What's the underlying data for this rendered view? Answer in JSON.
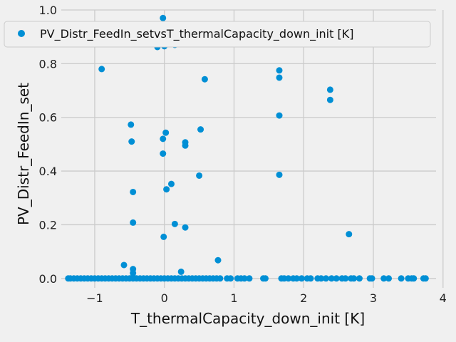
{
  "chart_data": {
    "type": "scatter",
    "title": "",
    "xlabel": "T_thermalCapacity_down_init [K]",
    "ylabel": "PV_Distr_FeedIn_set",
    "xlim": [
      -1.48,
      3.9
    ],
    "ylim": [
      -0.035,
      1.0
    ],
    "xticks": [
      -1,
      0,
      1,
      2,
      3,
      4
    ],
    "yticks": [
      0.0,
      0.2,
      0.4,
      0.6,
      0.8,
      1.0
    ],
    "xtick_labels": [
      "−1",
      "0",
      "1",
      "2",
      "3",
      "4"
    ],
    "ytick_labels": [
      "0.0",
      "0.2",
      "0.4",
      "0.6",
      "0.8",
      "1.0"
    ],
    "grid": true,
    "legend_position": "top-right",
    "colors": {
      "series": "#008fd5",
      "grid": "#cbcbcb",
      "background": "#f0f0f0"
    },
    "series": [
      {
        "name": "PV_Distr_FeedIn_setvsT_thermalCapacity_down_init [K]",
        "points": [
          [
            -0.02,
            0.97
          ],
          [
            0.0,
            0.865
          ],
          [
            -0.1,
            0.862
          ],
          [
            0.15,
            0.87
          ],
          [
            -0.9,
            0.78
          ],
          [
            0.58,
            0.742
          ],
          [
            1.65,
            0.775
          ],
          [
            1.65,
            0.748
          ],
          [
            2.38,
            0.703
          ],
          [
            2.38,
            0.665
          ],
          [
            1.65,
            0.607
          ],
          [
            -0.48,
            0.573
          ],
          [
            0.52,
            0.555
          ],
          [
            0.02,
            0.543
          ],
          [
            -0.02,
            0.52
          ],
          [
            -0.47,
            0.51
          ],
          [
            0.3,
            0.507
          ],
          [
            0.3,
            0.495
          ],
          [
            -0.02,
            0.465
          ],
          [
            0.5,
            0.383
          ],
          [
            1.65,
            0.386
          ],
          [
            0.1,
            0.352
          ],
          [
            0.03,
            0.332
          ],
          [
            -0.45,
            0.322
          ],
          [
            -0.45,
            0.208
          ],
          [
            0.15,
            0.203
          ],
          [
            0.3,
            0.19
          ],
          [
            -0.01,
            0.155
          ],
          [
            2.65,
            0.165
          ],
          [
            0.77,
            0.068
          ],
          [
            -0.58,
            0.05
          ],
          [
            -0.45,
            0.035
          ],
          [
            -0.45,
            0.02
          ],
          [
            0.24,
            0.025
          ],
          [
            -0.45,
            0.005
          ],
          [
            -1.38,
            0.0
          ],
          [
            -1.35,
            0.0
          ],
          [
            -1.3,
            0.0
          ],
          [
            -1.25,
            0.0
          ],
          [
            -1.2,
            0.0
          ],
          [
            -1.15,
            0.0
          ],
          [
            -1.1,
            0.0
          ],
          [
            -1.05,
            0.0
          ],
          [
            -1.0,
            0.0
          ],
          [
            -0.95,
            0.0
          ],
          [
            -0.9,
            0.0
          ],
          [
            -0.85,
            0.0
          ],
          [
            -0.8,
            0.0
          ],
          [
            -0.75,
            0.0
          ],
          [
            -0.7,
            0.0
          ],
          [
            -0.65,
            0.0
          ],
          [
            -0.6,
            0.0
          ],
          [
            -0.55,
            0.0
          ],
          [
            -0.5,
            0.0
          ],
          [
            -0.45,
            0.0
          ],
          [
            -0.4,
            0.0
          ],
          [
            -0.35,
            0.0
          ],
          [
            -0.3,
            0.0
          ],
          [
            -0.25,
            0.0
          ],
          [
            -0.2,
            0.0
          ],
          [
            -0.15,
            0.0
          ],
          [
            -0.1,
            0.0
          ],
          [
            -0.05,
            0.0
          ],
          [
            0.0,
            0.0
          ],
          [
            0.05,
            0.0
          ],
          [
            0.1,
            0.0
          ],
          [
            0.15,
            0.0
          ],
          [
            0.2,
            0.0
          ],
          [
            0.25,
            0.0
          ],
          [
            0.3,
            0.0
          ],
          [
            0.35,
            0.0
          ],
          [
            0.4,
            0.0
          ],
          [
            0.45,
            0.0
          ],
          [
            0.5,
            0.0
          ],
          [
            0.55,
            0.0
          ],
          [
            0.6,
            0.0
          ],
          [
            0.65,
            0.0
          ],
          [
            0.7,
            0.0
          ],
          [
            0.75,
            0.0
          ],
          [
            0.8,
            0.0
          ],
          [
            0.9,
            0.0
          ],
          [
            0.95,
            0.0
          ],
          [
            1.05,
            0.0
          ],
          [
            1.1,
            0.0
          ],
          [
            1.15,
            0.0
          ],
          [
            1.22,
            0.0
          ],
          [
            1.42,
            0.0
          ],
          [
            1.45,
            0.0
          ],
          [
            1.68,
            0.0
          ],
          [
            1.72,
            0.0
          ],
          [
            1.78,
            0.0
          ],
          [
            1.85,
            0.0
          ],
          [
            1.9,
            0.0
          ],
          [
            1.97,
            0.0
          ],
          [
            2.05,
            0.0
          ],
          [
            2.1,
            0.0
          ],
          [
            2.2,
            0.0
          ],
          [
            2.25,
            0.0
          ],
          [
            2.32,
            0.0
          ],
          [
            2.4,
            0.0
          ],
          [
            2.47,
            0.0
          ],
          [
            2.55,
            0.0
          ],
          [
            2.6,
            0.0
          ],
          [
            2.68,
            0.0
          ],
          [
            2.72,
            0.0
          ],
          [
            2.8,
            0.0
          ],
          [
            2.95,
            0.0
          ],
          [
            2.98,
            0.0
          ],
          [
            3.15,
            0.0
          ],
          [
            3.22,
            0.0
          ],
          [
            3.4,
            0.0
          ],
          [
            3.5,
            0.0
          ],
          [
            3.55,
            0.0
          ],
          [
            3.58,
            0.0
          ],
          [
            3.72,
            0.0
          ],
          [
            3.75,
            0.0
          ]
        ]
      }
    ]
  }
}
